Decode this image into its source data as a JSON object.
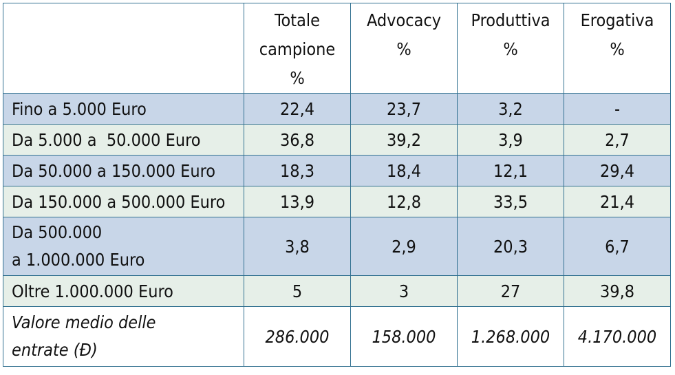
{
  "header": {
    "columns": [
      {
        "lines": [
          "Totale",
          "campione",
          "%"
        ]
      },
      {
        "lines": [
          "Advocacy",
          "%"
        ]
      },
      {
        "lines": [
          "Produttiva",
          "%"
        ]
      },
      {
        "lines": [
          "Erogativa",
          "%"
        ]
      }
    ]
  },
  "rows": [
    {
      "label_lines": [
        "Fino a 5.000 Euro"
      ],
      "values": [
        "22,4",
        "23,7",
        "3,2",
        "-"
      ]
    },
    {
      "label_lines": [
        "Da 5.000 a  50.000 Euro"
      ],
      "values": [
        "36,8",
        "39,2",
        "3,9",
        "2,7"
      ]
    },
    {
      "label_lines": [
        "Da 50.000 a 150.000 Euro"
      ],
      "values": [
        "18,3",
        "18,4",
        "12,1",
        "29,4"
      ]
    },
    {
      "label_lines": [
        "Da 150.000 a 500.000 Euro"
      ],
      "values": [
        "13,9",
        "12,8",
        "33,5",
        "21,4"
      ]
    },
    {
      "label_lines": [
        "Da 500.000",
        "a 1.000.000 Euro"
      ],
      "values": [
        "3,8",
        "2,9",
        "20,3",
        "6,7"
      ]
    },
    {
      "label_lines": [
        "Oltre 1.000.000 Euro"
      ],
      "values": [
        "5",
        "3",
        "27",
        "39,8"
      ]
    },
    {
      "label_lines": [
        "Valore medio delle",
        "entrate (Đ)"
      ],
      "values": [
        "286.000",
        "158.000",
        "1.268.000",
        "4.170.000"
      ]
    }
  ],
  "colors": {
    "border": "#2f6f8f",
    "row_blue": "#c8d6e8",
    "row_green": "#e6efe8"
  }
}
